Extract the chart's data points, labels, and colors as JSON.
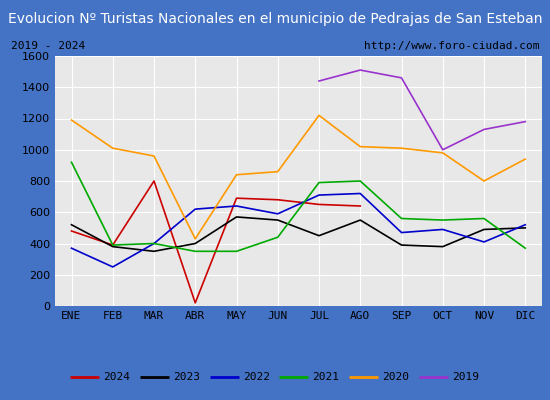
{
  "title": "Evolucion Nº Turistas Nacionales en el municipio de Pedrajas de San Esteban",
  "subtitle_left": "2019 - 2024",
  "subtitle_right": "http://www.foro-ciudad.com",
  "months": [
    "ENE",
    "FEB",
    "MAR",
    "ABR",
    "MAY",
    "JUN",
    "JUL",
    "AGO",
    "SEP",
    "OCT",
    "NOV",
    "DIC"
  ],
  "series": {
    "2024": [
      480,
      390,
      800,
      20,
      690,
      680,
      650,
      640,
      null,
      null,
      null,
      null
    ],
    "2023": [
      520,
      380,
      350,
      400,
      570,
      550,
      450,
      550,
      390,
      380,
      490,
      500
    ],
    "2022": [
      370,
      250,
      400,
      620,
      640,
      590,
      710,
      720,
      470,
      490,
      410,
      520
    ],
    "2021": [
      920,
      390,
      400,
      350,
      350,
      440,
      790,
      800,
      560,
      550,
      560,
      370
    ],
    "2020": [
      1190,
      1010,
      960,
      430,
      840,
      860,
      1220,
      1020,
      1010,
      980,
      800,
      940
    ],
    "2019": [
      null,
      null,
      null,
      null,
      null,
      null,
      1440,
      1510,
      1460,
      1000,
      1130,
      1180
    ]
  },
  "colors": {
    "2024": "#cc0000",
    "2023": "#000000",
    "2022": "#0000cc",
    "2021": "#00aa00",
    "2020": "#ff9900",
    "2019": "#9933cc"
  },
  "ylim": [
    0,
    1600
  ],
  "yticks": [
    0,
    200,
    400,
    600,
    800,
    1000,
    1200,
    1400,
    1600
  ],
  "title_bg_color": "#4472c4",
  "title_text_color": "#ffffff",
  "plot_bg_color": "#e8e8e8",
  "outer_bg_color": "#4472c4",
  "grid_color": "#ffffff",
  "subtitle_bg": "#d8d8d8",
  "legend_order": [
    "2024",
    "2023",
    "2022",
    "2021",
    "2020",
    "2019"
  ],
  "title_fontsize": 10,
  "tick_fontsize": 8,
  "legend_fontsize": 8
}
